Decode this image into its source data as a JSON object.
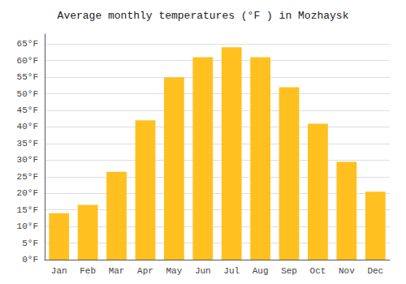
{
  "chart_data": {
    "type": "bar",
    "title": "Average monthly temperatures (°F ) in Mozhaysk",
    "categories": [
      "Jan",
      "Feb",
      "Mar",
      "Apr",
      "May",
      "Jun",
      "Jul",
      "Aug",
      "Sep",
      "Oct",
      "Nov",
      "Dec"
    ],
    "values": [
      14,
      16.5,
      26.5,
      42,
      55,
      61,
      64,
      61,
      52,
      41,
      29.5,
      20.5
    ],
    "color": "#FFC020",
    "ylim": [
      0,
      68
    ],
    "yticks": [
      {
        "value": 0,
        "label": "0°F"
      },
      {
        "value": 5,
        "label": "5°F"
      },
      {
        "value": 10,
        "label": "10°F"
      },
      {
        "value": 15,
        "label": "15°F"
      },
      {
        "value": 20,
        "label": "20°F"
      },
      {
        "value": 25,
        "label": "25°F"
      },
      {
        "value": 30,
        "label": "30°F"
      },
      {
        "value": 35,
        "label": "35°F"
      },
      {
        "value": 40,
        "label": "40°F"
      },
      {
        "value": 45,
        "label": "45°F"
      },
      {
        "value": 50,
        "label": "50°F"
      },
      {
        "value": 55,
        "label": "55°F"
      },
      {
        "value": 60,
        "label": "60°F"
      },
      {
        "value": 65,
        "label": "65°F"
      }
    ],
    "grid": true
  }
}
